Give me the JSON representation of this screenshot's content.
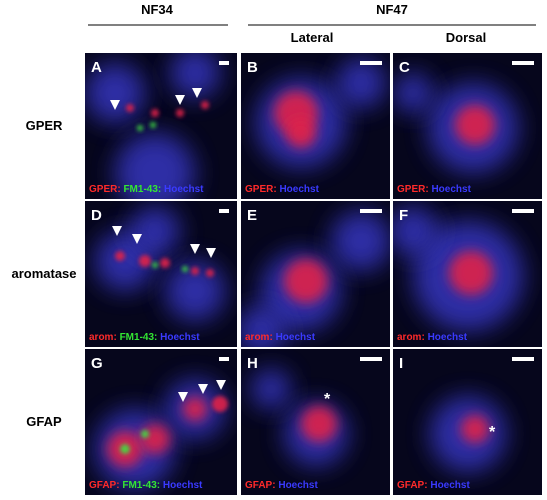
{
  "headers": {
    "left": "NF34",
    "right": "NF47"
  },
  "subheaders": [
    "Lateral",
    "Dorsal"
  ],
  "rows": [
    "GPER",
    "aromatase",
    "GFAP"
  ],
  "marker": "*",
  "panels": [
    {
      "letter": "A",
      "caption": [
        {
          "text": "GPER:",
          "color": "#ff2a2a"
        },
        {
          "text": " FM1-43:",
          "color": "#33e633"
        },
        {
          "text": " Hoechst",
          "color": "#3a3aff"
        }
      ]
    },
    {
      "letter": "B",
      "caption": [
        {
          "text": "GPER:",
          "color": "#ff2a2a"
        },
        {
          "text": " Hoechst",
          "color": "#3a3aff"
        }
      ]
    },
    {
      "letter": "C",
      "caption": [
        {
          "text": "GPER:",
          "color": "#ff2a2a"
        },
        {
          "text": " Hoechst",
          "color": "#3a3aff"
        }
      ]
    },
    {
      "letter": "D",
      "caption": [
        {
          "text": "arom:",
          "color": "#ff2a2a"
        },
        {
          "text": " FM1-43:",
          "color": "#33e633"
        },
        {
          "text": " Hoechst",
          "color": "#3a3aff"
        }
      ]
    },
    {
      "letter": "E",
      "caption": [
        {
          "text": "arom:",
          "color": "#ff2a2a"
        },
        {
          "text": " Hoechst",
          "color": "#3a3aff"
        }
      ]
    },
    {
      "letter": "F",
      "caption": [
        {
          "text": "arom:",
          "color": "#ff2a2a"
        },
        {
          "text": " Hoechst",
          "color": "#3a3aff"
        }
      ]
    },
    {
      "letter": "G",
      "caption": [
        {
          "text": "GFAP:",
          "color": "#ff2a2a"
        },
        {
          "text": " FM1-43:",
          "color": "#33e633"
        },
        {
          "text": " Hoechst",
          "color": "#3a3aff"
        }
      ]
    },
    {
      "letter": "H",
      "caption": [
        {
          "text": "GFAP:",
          "color": "#ff2a2a"
        },
        {
          "text": " Hoechst",
          "color": "#3a3aff"
        }
      ]
    },
    {
      "letter": "I",
      "caption": [
        {
          "text": "GFAP:",
          "color": "#ff2a2a"
        },
        {
          "text": " Hoechst",
          "color": "#3a3aff"
        }
      ]
    }
  ]
}
